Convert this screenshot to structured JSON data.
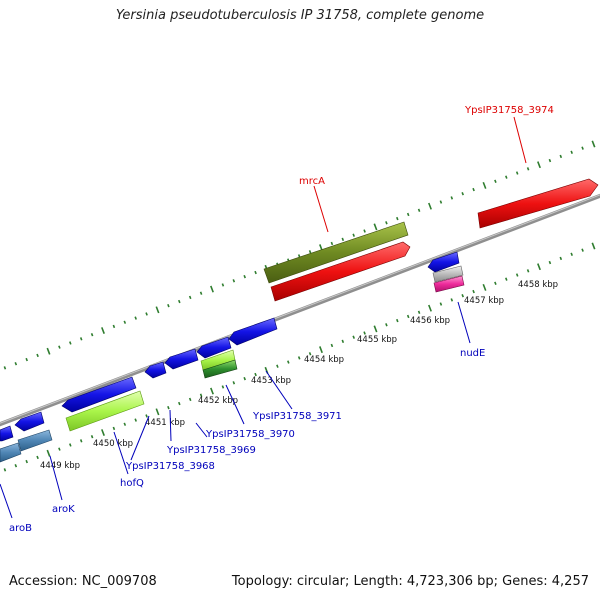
{
  "title": "Yersinia pseudotuberculosis IP 31758, complete genome",
  "colors": {
    "backbone": "#8f8f8f",
    "tick": "#2f7d2f",
    "forward_gene": "#ee1111",
    "reverse_gene": "#1111dd",
    "forward_label": "#dd0000",
    "reverse_label": "#0000bb",
    "olive_gene": "#6f8a22",
    "lime_gene": "#aaf54a",
    "steel_gene": "#4f86b5",
    "pink_gene": "#ee2b9b",
    "silver_gene": "#bcbcbc",
    "green_gene": "#2e8f2e"
  },
  "scale_labels": [
    "4449 kbp",
    "4450 kbp",
    "4451 kbp",
    "4452 kbp",
    "4453 kbp",
    "4454 kbp",
    "4455 kbp",
    "4456 kbp",
    "4457 kbp",
    "4458 kbp"
  ],
  "gene_labels": [
    {
      "name": "YpsIP31758_3974",
      "strand": "forward"
    },
    {
      "name": "mrcA",
      "strand": "forward"
    },
    {
      "name": "nudE",
      "strand": "reverse"
    },
    {
      "name": "YpsIP31758_3971",
      "strand": "reverse"
    },
    {
      "name": "YpsIP31758_3970",
      "strand": "reverse"
    },
    {
      "name": "YpsIP31758_3969",
      "strand": "reverse"
    },
    {
      "name": "YpsIP31758_3968",
      "strand": "reverse"
    },
    {
      "name": "hofQ",
      "strand": "reverse"
    },
    {
      "name": "aroK",
      "strand": "reverse"
    },
    {
      "name": "aroB",
      "strand": "reverse"
    }
  ],
  "footer": {
    "accession": "Accession: NC_009708",
    "summary": "Topology: circular; Length: 4,723,306 bp; Genes: 4,257"
  }
}
